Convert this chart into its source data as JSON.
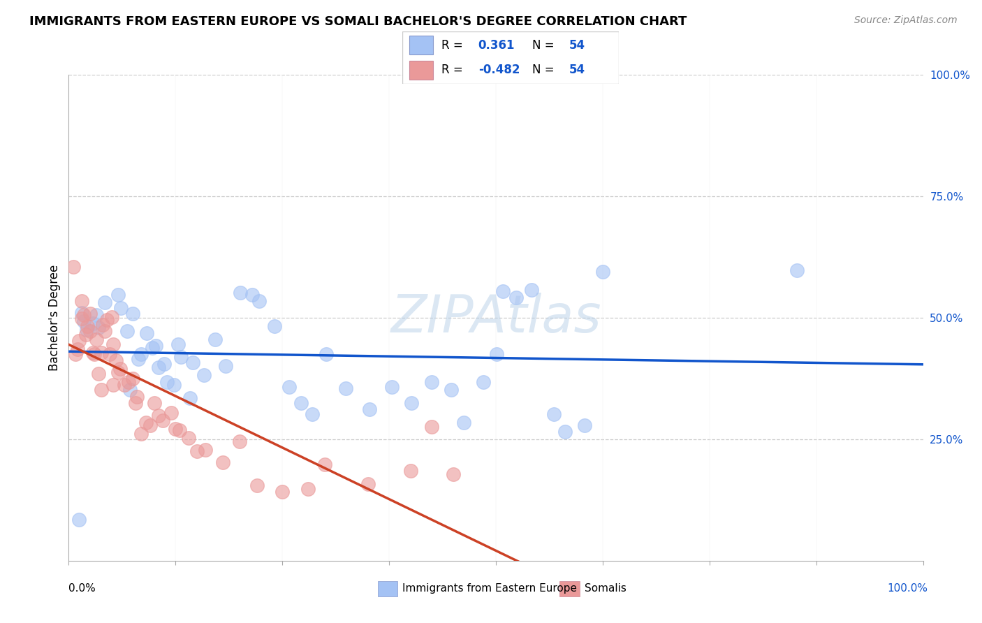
{
  "title": "IMMIGRANTS FROM EASTERN EUROPE VS SOMALI BACHELOR'S DEGREE CORRELATION CHART",
  "source": "Source: ZipAtlas.com",
  "ylabel": "Bachelor's Degree",
  "legend_label1": "Immigrants from Eastern Europe",
  "legend_label2": "Somalis",
  "r1": 0.361,
  "n1": 54,
  "r2": -0.482,
  "n2": 54,
  "blue_color": "#a4c2f4",
  "pink_color": "#ea9999",
  "blue_line_color": "#1155cc",
  "pink_line_color": "#cc4125",
  "watermark": "ZIPAtlas",
  "watermark_color": "#b8d0e8",
  "blue_x": [
    2.1,
    1.8,
    1.5,
    3.2,
    2.8,
    3.5,
    4.2,
    5.8,
    6.1,
    7.2,
    8.5,
    9.1,
    10.2,
    11.5,
    12.3,
    13.1,
    14.2,
    15.8,
    17.1,
    18.4,
    20.1,
    21.5,
    22.3,
    24.1,
    25.8,
    27.2,
    28.5,
    30.1,
    32.4,
    35.2,
    37.8,
    40.1,
    42.5,
    44.8,
    46.2,
    48.5,
    50.1,
    50.8,
    52.4,
    54.2,
    56.8,
    58.1,
    60.4,
    62.5,
    10.5,
    11.2,
    6.8,
    7.5,
    8.1,
    9.8,
    12.8,
    14.5,
    85.2,
    1.2
  ],
  "blue_y": [
    47.5,
    49.2,
    51.0,
    50.5,
    48.8,
    48.0,
    53.2,
    54.8,
    52.0,
    35.2,
    42.5,
    46.8,
    44.2,
    36.8,
    36.2,
    42.0,
    33.5,
    38.2,
    45.5,
    40.1,
    55.2,
    54.8,
    53.5,
    48.2,
    35.8,
    32.5,
    30.2,
    42.5,
    35.5,
    31.2,
    35.8,
    32.5,
    36.8,
    35.2,
    28.5,
    36.8,
    42.5,
    55.5,
    54.2,
    55.8,
    30.2,
    26.5,
    27.8,
    59.5,
    39.8,
    40.5,
    47.2,
    50.8,
    41.5,
    43.8,
    44.5,
    40.8,
    59.8,
    8.5
  ],
  "pink_x": [
    0.5,
    0.8,
    1.2,
    1.5,
    1.8,
    2.0,
    2.2,
    2.5,
    2.8,
    3.0,
    3.2,
    3.5,
    3.8,
    4.0,
    4.2,
    4.5,
    4.8,
    5.0,
    5.2,
    5.5,
    5.8,
    6.0,
    6.5,
    7.0,
    7.5,
    8.0,
    8.5,
    9.0,
    9.5,
    10.0,
    10.5,
    11.0,
    12.0,
    12.5,
    13.0,
    14.0,
    15.0,
    16.0,
    18.0,
    20.0,
    22.0,
    25.0,
    28.0,
    30.0,
    35.0,
    40.0,
    45.0,
    42.5,
    1.0,
    2.5,
    3.8,
    5.2,
    7.8,
    1.5
  ],
  "pink_y": [
    60.5,
    42.5,
    45.2,
    49.8,
    50.5,
    46.5,
    48.2,
    50.8,
    42.8,
    42.5,
    45.5,
    38.5,
    35.2,
    48.5,
    47.2,
    49.5,
    42.5,
    50.2,
    44.5,
    41.2,
    38.8,
    39.5,
    36.2,
    36.8,
    37.5,
    33.8,
    26.2,
    28.5,
    27.8,
    32.5,
    29.8,
    28.8,
    30.5,
    27.2,
    26.8,
    25.2,
    22.5,
    22.8,
    20.2,
    24.5,
    15.5,
    14.2,
    14.8,
    19.8,
    15.8,
    18.5,
    17.8,
    27.5,
    43.5,
    47.2,
    42.8,
    36.2,
    32.5,
    53.5
  ]
}
